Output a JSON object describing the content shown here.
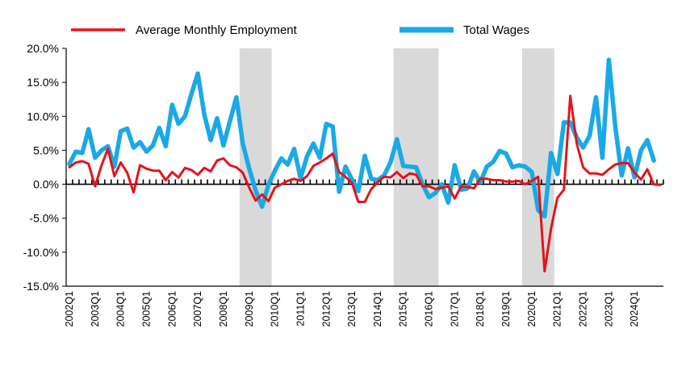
{
  "chart_data": {
    "type": "line",
    "title": "",
    "xlabel": "",
    "ylabel": "",
    "ylim": [
      -15,
      20
    ],
    "y_ticks": [
      -15,
      -10,
      -5,
      0,
      5,
      10,
      15,
      20
    ],
    "y_tick_labels": [
      "-15.0%",
      "-10.0%",
      "-5.0%",
      "0.0%",
      "5.0%",
      "10.0%",
      "15.0%",
      "20.0%"
    ],
    "grid": false,
    "legend_position": "top",
    "x_tick_labels": [
      "2002Q1",
      "2003Q1",
      "2004Q1",
      "2005Q1",
      "2006Q1",
      "2007Q1",
      "2008Q1",
      "2009Q1",
      "2010Q1",
      "2011Q1",
      "2012Q1",
      "2013Q1",
      "2014Q1",
      "2015Q1",
      "2016Q1",
      "2017Q1",
      "2018Q1",
      "2019Q1",
      "2020Q1",
      "2021Q1",
      "2022Q1",
      "2023Q1",
      "2024Q1"
    ],
    "x_start": "2002Q1",
    "shaded_periods": [
      {
        "start": "2008Q4",
        "end": "2010Q1"
      },
      {
        "start": "2014Q4",
        "end": "2016Q3"
      },
      {
        "start": "2019Q4",
        "end": "2021Q1"
      }
    ],
    "series": [
      {
        "name": "Average Monthly Employment",
        "color": "#e3141b",
        "values": [
          2.5,
          3.2,
          3.4,
          3.0,
          -0.3,
          2.8,
          5.2,
          1.2,
          3.2,
          1.7,
          -1.2,
          2.8,
          2.3,
          2.0,
          2.0,
          0.6,
          1.8,
          1.0,
          2.4,
          2.1,
          1.4,
          2.4,
          1.9,
          3.5,
          3.8,
          2.8,
          2.5,
          1.7,
          -0.5,
          -2.4,
          -1.5,
          -2.5,
          -0.5,
          0.0,
          0.5,
          0.8,
          0.5,
          1.2,
          2.7,
          3.2,
          3.8,
          4.5,
          1.8,
          1.1,
          0.2,
          -2.6,
          -2.6,
          -0.7,
          0.3,
          1.1,
          1.0,
          1.8,
          0.9,
          1.6,
          1.4,
          -0.3,
          -0.3,
          -0.7,
          -0.5,
          -0.3,
          -2.1,
          -0.3,
          -0.4,
          -0.6,
          0.8,
          0.8,
          0.6,
          0.6,
          0.4,
          0.4,
          0.5,
          0.0,
          0.5,
          1.1,
          -12.8,
          -6.5,
          -2.0,
          -0.8,
          13.0,
          6.0,
          2.5,
          1.6,
          1.6,
          1.4,
          2.2,
          2.9,
          3.1,
          3.1,
          1.7,
          0.7,
          2.2,
          0.0,
          -0.1
        ]
      },
      {
        "name": "Total Wages",
        "color": "#1ba9e6",
        "values": [
          3.0,
          4.8,
          4.6,
          8.1,
          3.9,
          5.0,
          5.6,
          2.6,
          7.8,
          8.2,
          5.4,
          6.2,
          4.8,
          5.7,
          8.3,
          5.6,
          11.7,
          8.9,
          10.0,
          13.3,
          16.3,
          10.3,
          6.5,
          9.7,
          5.7,
          9.3,
          12.8,
          6.0,
          2.3,
          -0.9,
          -3.3,
          -0.1,
          2.0,
          3.8,
          2.9,
          5.2,
          0.9,
          4.1,
          6.0,
          3.9,
          8.9,
          8.5,
          -1.1,
          2.6,
          0.7,
          -1.0,
          4.2,
          0.8,
          0.6,
          1.3,
          3.2,
          6.6,
          2.7,
          2.6,
          2.5,
          0.0,
          -1.9,
          -1.3,
          0.0,
          -2.7,
          2.8,
          -0.8,
          -0.6,
          1.9,
          0.3,
          2.6,
          3.3,
          4.9,
          4.5,
          2.5,
          2.8,
          2.6,
          1.8,
          -3.8,
          -4.7,
          4.6,
          1.5,
          9.1,
          9.1,
          6.9,
          5.4,
          7.1,
          12.8,
          3.9,
          18.3,
          8.6,
          1.3,
          5.3,
          1.0,
          5.0,
          6.5,
          3.5
        ]
      }
    ]
  }
}
